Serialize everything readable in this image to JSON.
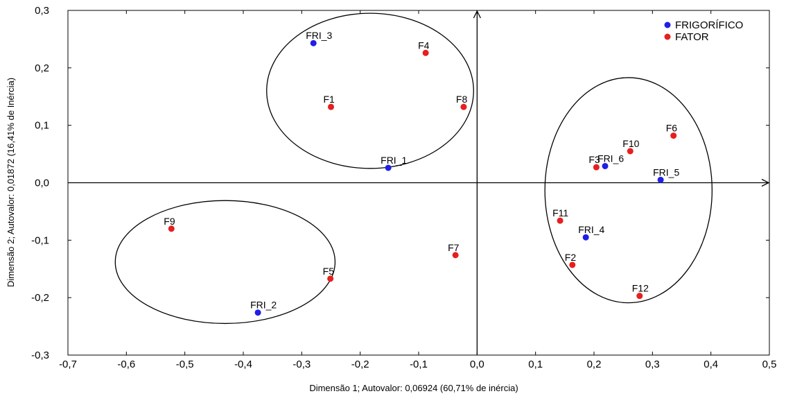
{
  "chart_data": {
    "type": "scatter",
    "xlabel": "Dimensão 1; Autovalor: 0,06924 (60,71% de inércia)",
    "ylabel": "Dimensão 2; Autovalor: 0,01872 (16,41% de Inércia)",
    "xlim": [
      -0.7,
      0.5
    ],
    "ylim": [
      -0.3,
      0.3
    ],
    "x_ticks": [
      "-0,7",
      "-0,6",
      "-0,5",
      "-0,4",
      "-0,3",
      "-0,2",
      "-0,1",
      "0,0",
      "0,1",
      "0,2",
      "0,3",
      "0,4",
      "0,5"
    ],
    "x_tick_values": [
      -0.7,
      -0.6,
      -0.5,
      -0.4,
      -0.3,
      -0.2,
      -0.1,
      0.0,
      0.1,
      0.2,
      0.3,
      0.4,
      0.5
    ],
    "y_ticks": [
      "0,3",
      "0,2",
      "0,1",
      "0,0",
      "-0,1",
      "-0,2",
      "-0,3"
    ],
    "y_tick_values": [
      0.3,
      0.2,
      0.1,
      0.0,
      -0.1,
      -0.2,
      -0.3
    ],
    "grid": false,
    "legend_position": "top-right",
    "series": [
      {
        "name": "FRIGORÍFICO",
        "color": "#1f1fe6",
        "points": [
          {
            "label": "FRI_1",
            "x": -0.152,
            "y": 0.026
          },
          {
            "label": "FRI_2",
            "x": -0.375,
            "y": -0.226
          },
          {
            "label": "FRI_3",
            "x": -0.28,
            "y": 0.243
          },
          {
            "label": "FRI_4",
            "x": 0.186,
            "y": -0.095
          },
          {
            "label": "FRI_5",
            "x": 0.314,
            "y": 0.005
          },
          {
            "label": "FRI_6",
            "x": 0.219,
            "y": 0.029
          }
        ]
      },
      {
        "name": "FATOR",
        "color": "#e61f1f",
        "points": [
          {
            "label": "F1",
            "x": -0.25,
            "y": 0.132
          },
          {
            "label": "F2",
            "x": 0.163,
            "y": -0.143
          },
          {
            "label": "F3",
            "x": 0.204,
            "y": 0.027
          },
          {
            "label": "F4",
            "x": -0.088,
            "y": 0.226
          },
          {
            "label": "F5",
            "x": -0.251,
            "y": -0.167
          },
          {
            "label": "F6",
            "x": 0.336,
            "y": 0.082
          },
          {
            "label": "F7",
            "x": -0.037,
            "y": -0.126
          },
          {
            "label": "F8",
            "x": -0.023,
            "y": 0.132
          },
          {
            "label": "F9",
            "x": -0.523,
            "y": -0.08
          },
          {
            "label": "F10",
            "x": 0.262,
            "y": 0.055
          },
          {
            "label": "F11",
            "x": 0.142,
            "y": -0.066
          },
          {
            "label": "F12",
            "x": 0.278,
            "y": -0.197
          }
        ]
      }
    ],
    "ellipses": [
      {
        "cx": -0.183,
        "cy": 0.16,
        "rx": 0.177,
        "ry": 0.135
      },
      {
        "cx": -0.431,
        "cy": -0.138,
        "rx": 0.188,
        "ry": 0.107
      },
      {
        "cx": 0.259,
        "cy": -0.013,
        "rx": 0.143,
        "ry": 0.196
      }
    ]
  }
}
